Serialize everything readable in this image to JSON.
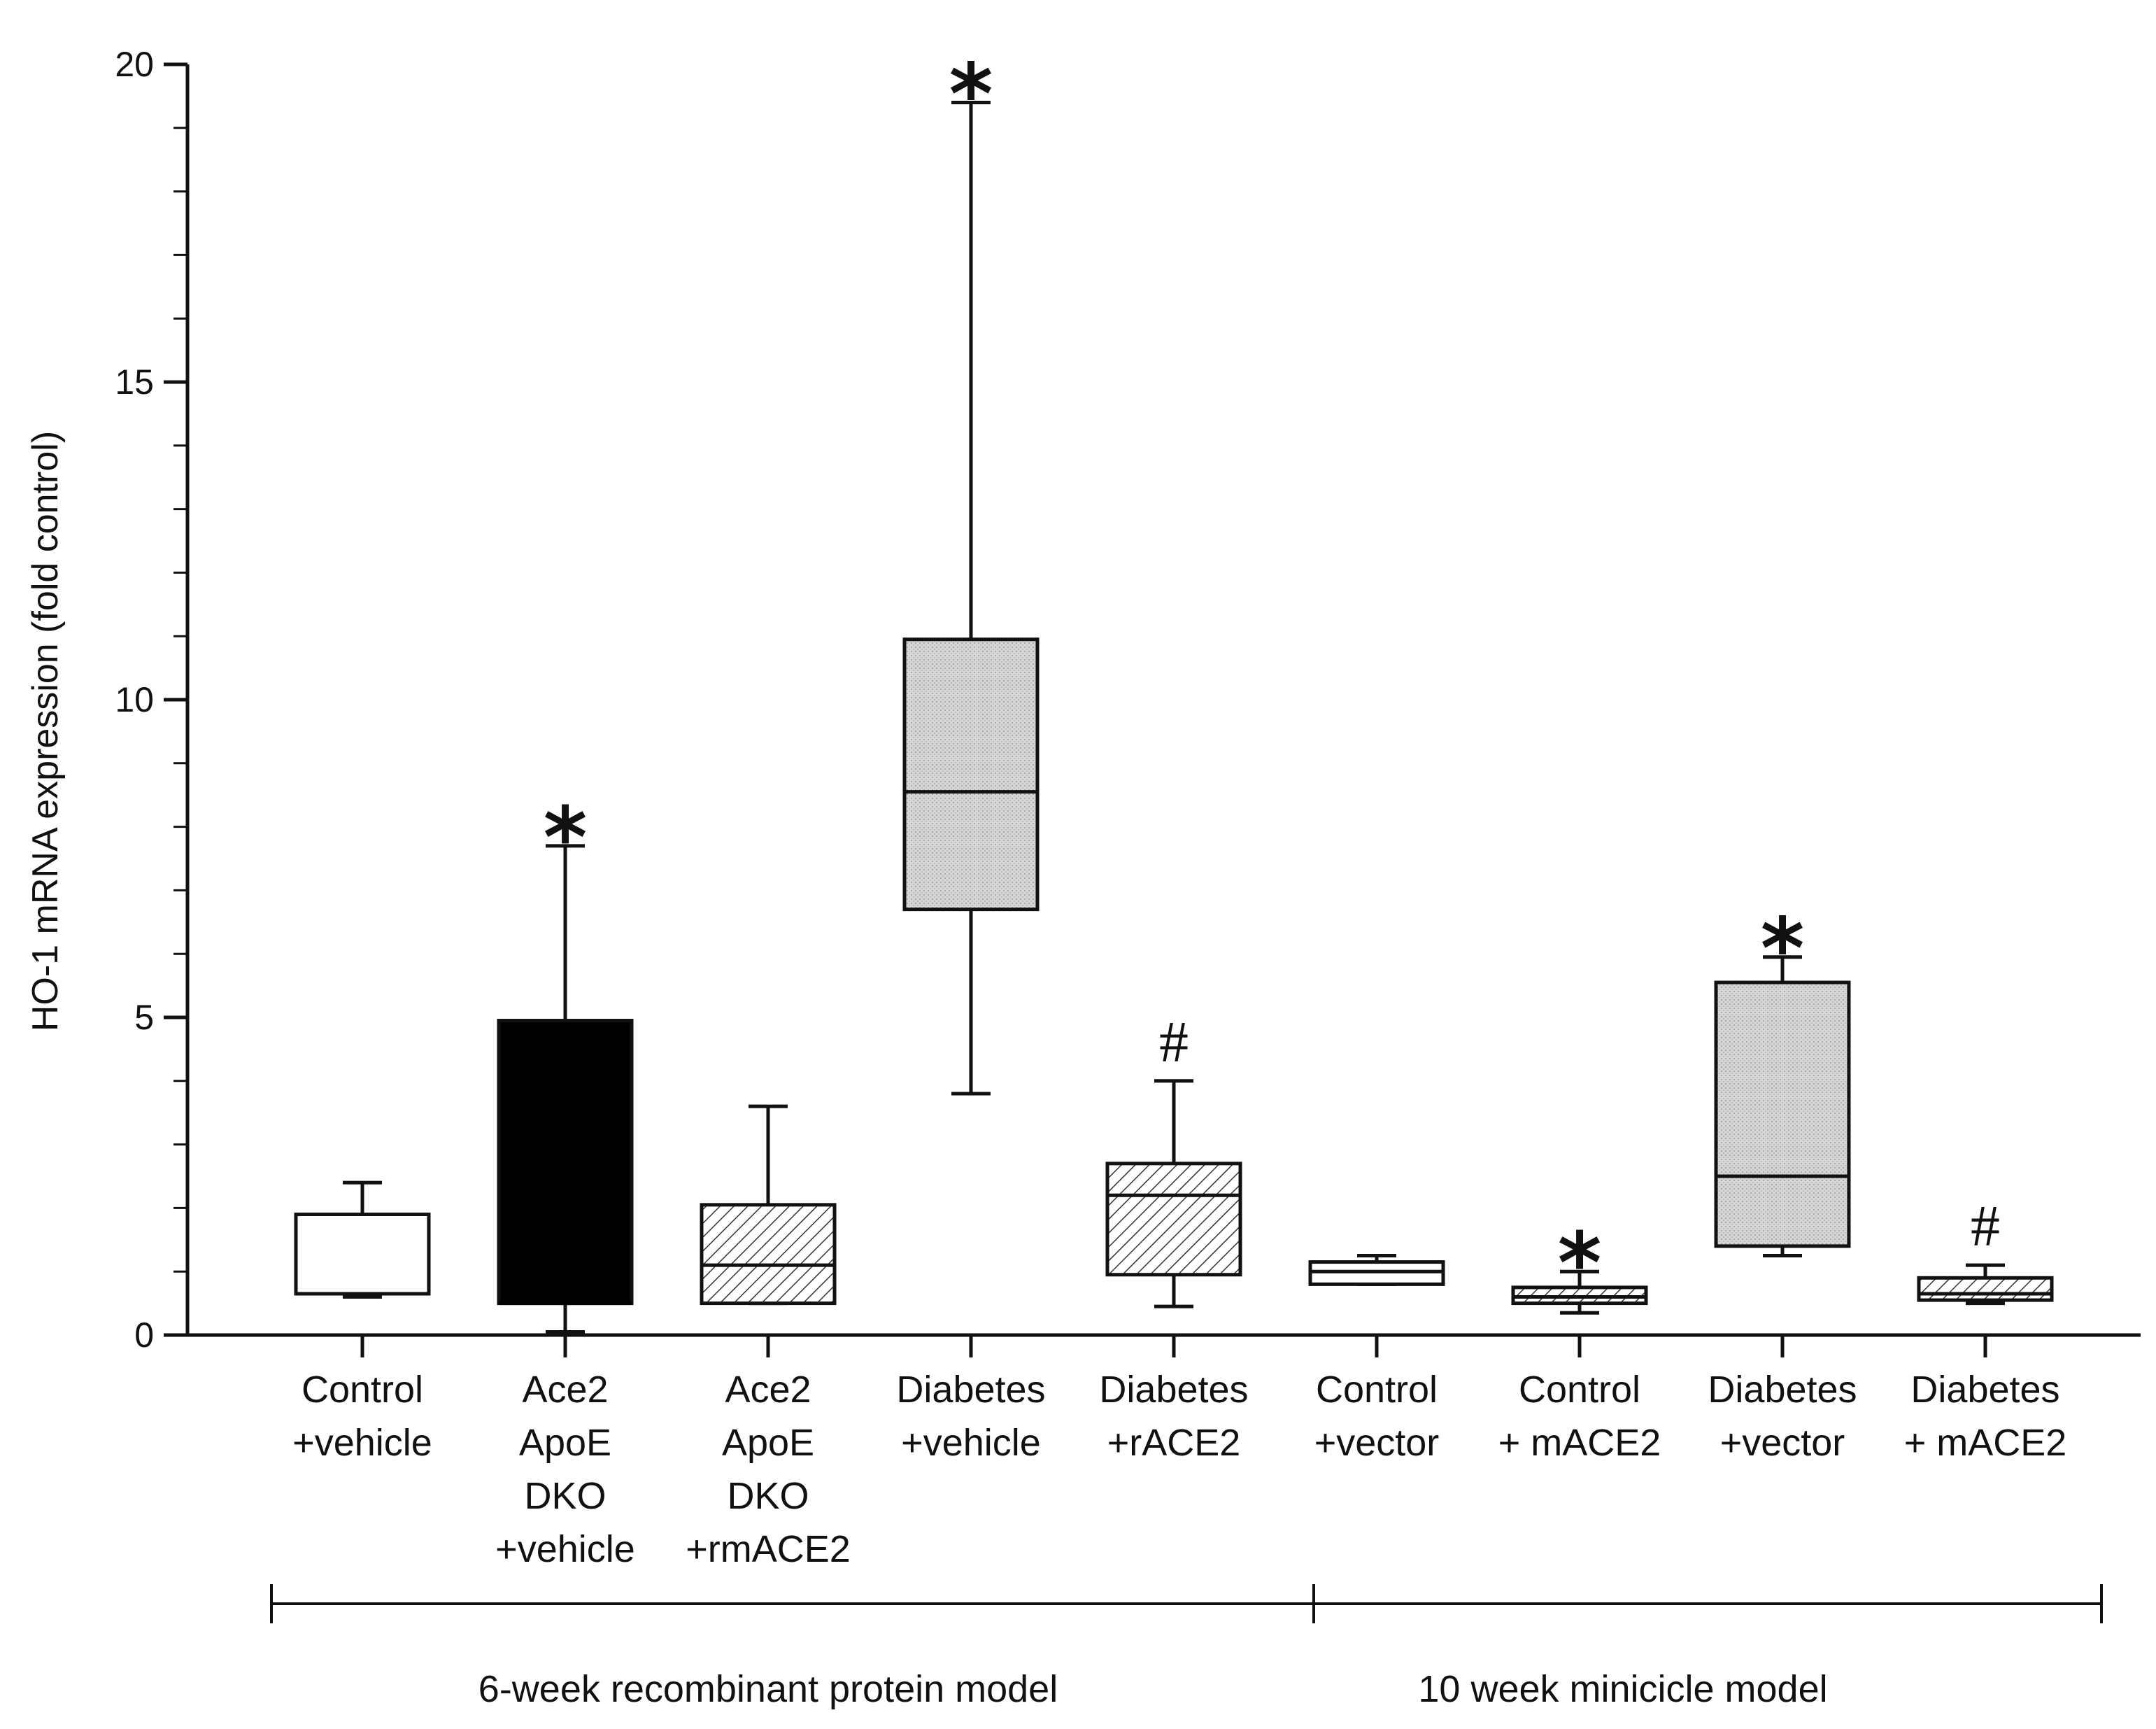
{
  "chart_data": {
    "type": "box",
    "title": "",
    "ylabel": "HO-1 mRNA expression (fold control)",
    "xlabel": "",
    "ylim": [
      0,
      20
    ],
    "yticks": [
      0,
      5,
      10,
      15,
      20
    ],
    "grid": false,
    "categories": [
      [
        "Control",
        "+vehicle"
      ],
      [
        "Ace2",
        "ApoE",
        "DKO",
        "+vehicle"
      ],
      [
        "Ace2",
        "ApoE",
        "DKO",
        "+rmACE2"
      ],
      [
        "Diabetes",
        "+vehicle"
      ],
      [
        "Diabetes",
        "+rACE2"
      ],
      [
        "Control",
        "+vector"
      ],
      [
        "Control",
        "+ mACE2"
      ],
      [
        "Diabetes",
        "+vector"
      ],
      [
        "Diabetes",
        "+ mACE2"
      ]
    ],
    "boxes": [
      {
        "min": 0.6,
        "q1": 0.65,
        "median": 0.65,
        "q3": 1.9,
        "max": 2.4,
        "fill": "white",
        "annotation": ""
      },
      {
        "min": 0.05,
        "q1": 0.5,
        "median": 0.5,
        "q3": 4.95,
        "max": 7.7,
        "fill": "black",
        "annotation": "*"
      },
      {
        "min": 0.5,
        "q1": 0.5,
        "median": 1.1,
        "q3": 2.05,
        "max": 3.6,
        "fill": "hatch",
        "annotation": ""
      },
      {
        "min": 3.8,
        "q1": 6.7,
        "median": 8.55,
        "q3": 10.95,
        "max": 19.4,
        "fill": "gray",
        "annotation": "*"
      },
      {
        "min": 0.45,
        "q1": 0.95,
        "median": 2.2,
        "q3": 2.7,
        "max": 4.0,
        "fill": "hatch",
        "annotation": "#"
      },
      {
        "min": 0.8,
        "q1": 0.8,
        "median": 1.0,
        "q3": 1.15,
        "max": 1.25,
        "fill": "white",
        "annotation": ""
      },
      {
        "min": 0.35,
        "q1": 0.5,
        "median": 0.6,
        "q3": 0.75,
        "max": 1.0,
        "fill": "hatch",
        "annotation": "*"
      },
      {
        "min": 1.25,
        "q1": 1.4,
        "median": 2.5,
        "q3": 5.55,
        "max": 5.95,
        "fill": "gray",
        "annotation": "*"
      },
      {
        "min": 0.5,
        "q1": 0.55,
        "median": 0.65,
        "q3": 0.9,
        "max": 1.1,
        "fill": "hatch",
        "annotation": "#"
      }
    ],
    "groups": [
      {
        "label": "6-week recombinant protein model",
        "span": [
          0,
          4
        ]
      },
      {
        "label": "10 week minicicle model",
        "span": [
          5,
          8
        ]
      }
    ]
  }
}
